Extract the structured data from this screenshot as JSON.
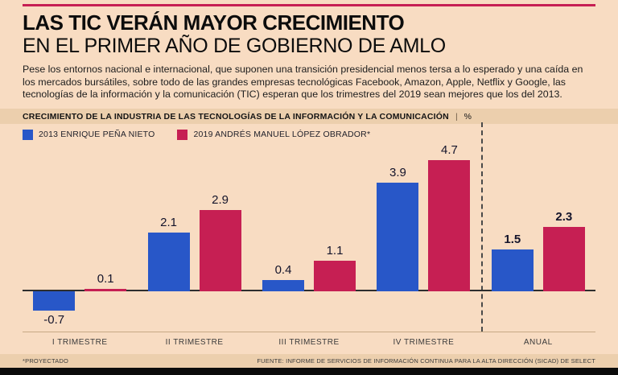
{
  "page": {
    "title_line1": "LAS TIC VERÁN MAYOR CRECIMIENTO",
    "title_line2": "EN EL PRIMER AÑO DE GOBIERNO DE AMLO",
    "intro": "Pese los entornos nacional e internacional, que suponen una transición presidencial menos tersa a lo esperado y una caída en los mercados bursátiles, sobre todo de las grandes empresas tecnológicas Facebook, Amazon, Apple, Netflix y Google, las tecnologías de la información y la comunicación (TIC) esperan que los trimestres del 2019 sean mejores que los del 2013.",
    "footer_left": "*PROYECTADO",
    "footer_right": "FUENTE: INFORME DE SERVICIOS DE INFORMACIÓN CONTINUA PARA LA ALTA DIRECCIÓN (SICAD) DE SELECT",
    "colors": {
      "background": "#f8dcc2",
      "band": "#eccfad",
      "accent_red": "#c61f53",
      "series_blue": "#2857c8",
      "series_crimson": "#c61f53",
      "bottom_strip": "#0b0b0b"
    }
  },
  "chart_data": {
    "type": "bar",
    "title": "CRECIMIENTO DE LA INDUSTRIA DE LAS TECNOLOGÍAS DE LA INFORMACIÓN Y LA COMUNICACIÓN",
    "divider": "|",
    "unit": "%",
    "categories": [
      "I TRIMESTRE",
      "II TRIMESTRE",
      "III TRIMESTRE",
      "IV TRIMESTRE",
      "ANUAL"
    ],
    "series": [
      {
        "name": "2013 ENRIQUE PEÑA NIETO",
        "color": "#2857c8",
        "values": [
          -0.7,
          2.1,
          0.4,
          3.9,
          1.5
        ]
      },
      {
        "name": "2019 ANDRÉS MANUEL LÓPEZ OBRADOR*",
        "color": "#c61f53",
        "values": [
          0.1,
          2.9,
          1.1,
          4.7,
          2.3
        ]
      }
    ],
    "ylim": [
      -1,
      5
    ],
    "grid": false,
    "legend_position": "top-left",
    "separator_before_category": "ANUAL",
    "bold_value_category": "ANUAL"
  }
}
